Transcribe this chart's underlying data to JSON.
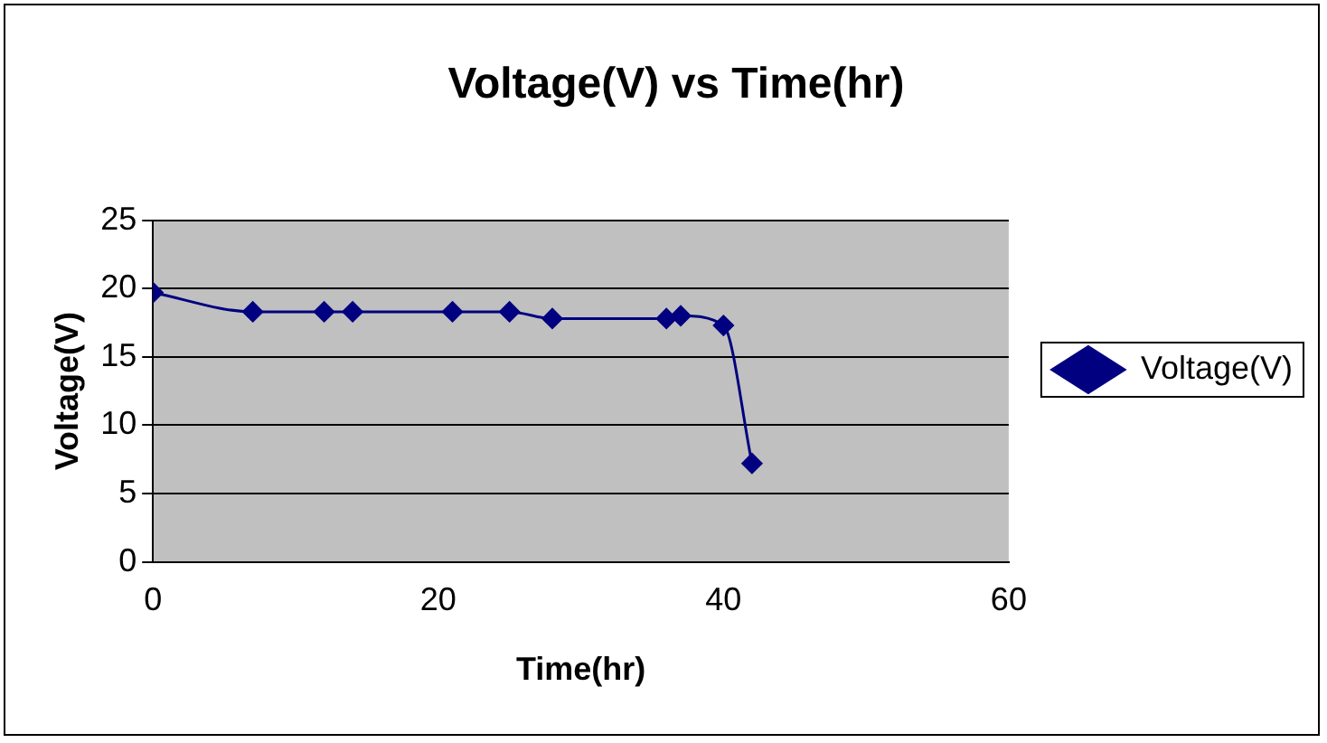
{
  "chart_data": {
    "type": "line",
    "title": "Voltage(V) vs Time(hr)",
    "xlabel": "Time(hr)",
    "ylabel": "Voltage(V)",
    "x": [
      0,
      7,
      12,
      14,
      21,
      25,
      28,
      36,
      37,
      40,
      42
    ],
    "series": [
      {
        "name": "Voltage(V)",
        "color": "#000080",
        "values": [
          19.7,
          18.3,
          18.3,
          18.3,
          18.3,
          18.3,
          17.8,
          17.8,
          18.0,
          17.3,
          7.2
        ]
      }
    ],
    "xlim": [
      0,
      60
    ],
    "xticks": [
      0,
      20,
      40,
      60
    ],
    "ylim": [
      0,
      25
    ],
    "yticks": [
      0,
      5,
      10,
      15,
      20,
      25
    ],
    "grid": "y",
    "legend": "right",
    "marker": "diamond",
    "line_style": "solid"
  }
}
